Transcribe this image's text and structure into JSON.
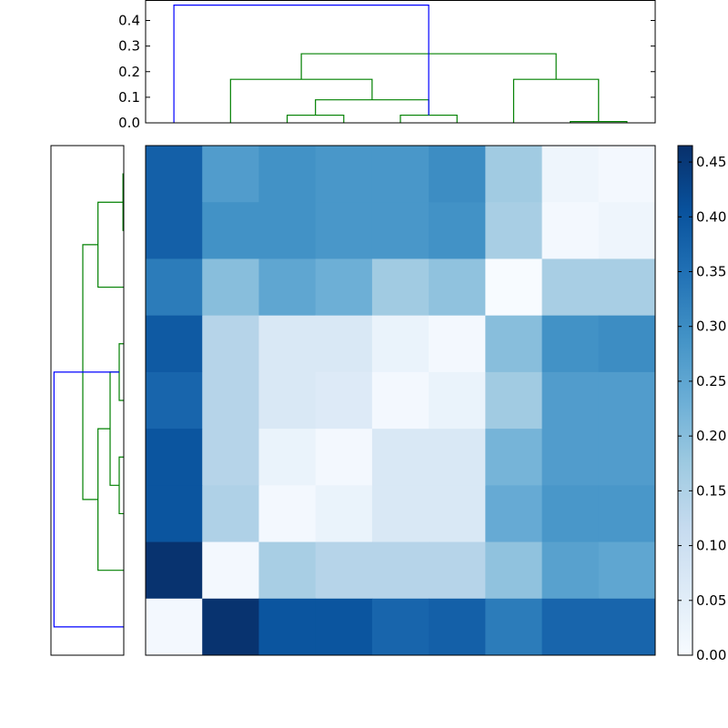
{
  "chart_data": [
    {
      "type": "dendrogram",
      "position": "top",
      "yticks": [
        "0.0",
        "0.1",
        "0.2",
        "0.3",
        "0.4"
      ],
      "ylim": [
        0,
        0.48
      ],
      "leaf_count": 9,
      "links": [
        {
          "left": 2,
          "right": 3,
          "height": 0.03,
          "color": "#008000"
        },
        {
          "left": 4,
          "right": 5,
          "height": 0.03,
          "color": "#008000"
        },
        {
          "left": 2.5,
          "right": 4.5,
          "height": 0.09,
          "color": "#008000"
        },
        {
          "left": 1,
          "right": 3.5,
          "height": 0.17,
          "color": "#008000"
        },
        {
          "left": 7,
          "right": 8,
          "height": 0.005,
          "color": "#008000"
        },
        {
          "left": 6,
          "right": 7.5,
          "height": 0.17,
          "color": "#008000"
        },
        {
          "left": 2.25,
          "right": 6.75,
          "height": 0.27,
          "color": "#008000"
        },
        {
          "left": 0,
          "right": 4.5,
          "height": 0.46,
          "color": "#0000ff"
        }
      ]
    },
    {
      "type": "dendrogram",
      "position": "left",
      "leaf_count": 9,
      "links": [
        {
          "left": 0,
          "right": 1,
          "height": 0.005,
          "color": "#008000"
        },
        {
          "left": 0.5,
          "right": 2,
          "height": 0.17,
          "color": "#008000"
        },
        {
          "left": 5,
          "right": 6,
          "height": 0.03,
          "color": "#008000"
        },
        {
          "left": 3,
          "right": 4,
          "height": 0.03,
          "color": "#008000"
        },
        {
          "left": 3.5,
          "right": 5.5,
          "height": 0.09,
          "color": "#008000"
        },
        {
          "left": 4.5,
          "right": 7,
          "height": 0.17,
          "color": "#008000"
        },
        {
          "left": 1.25,
          "right": 5.75,
          "height": 0.27,
          "color": "#008000"
        },
        {
          "left": 3.5,
          "right": 8,
          "height": 0.46,
          "color": "#0000ff"
        }
      ]
    },
    {
      "type": "heatmap",
      "colormap": [
        "#f7fbff",
        "#deebf7",
        "#c6dbef",
        "#9ecae1",
        "#6baed6",
        "#4292c6",
        "#2171b5",
        "#08519c",
        "#08306b"
      ],
      "vmin": 0,
      "vmax": 0.465,
      "colorbar_ticks": [
        "0.00",
        "0.05",
        "0.10",
        "0.15",
        "0.20",
        "0.25",
        "0.30",
        "0.35",
        "0.40",
        "0.45"
      ],
      "values": [
        [
          0.38,
          0.27,
          0.29,
          0.28,
          0.28,
          0.3,
          0.17,
          0.02,
          0.01
        ],
        [
          0.38,
          0.29,
          0.29,
          0.28,
          0.28,
          0.29,
          0.16,
          0.01,
          0.02
        ],
        [
          0.33,
          0.2,
          0.25,
          0.23,
          0.17,
          0.19,
          0.0,
          0.16,
          0.16
        ],
        [
          0.39,
          0.14,
          0.07,
          0.07,
          0.03,
          0.01,
          0.2,
          0.29,
          0.3
        ],
        [
          0.37,
          0.14,
          0.07,
          0.06,
          0.01,
          0.03,
          0.17,
          0.27,
          0.27
        ],
        [
          0.4,
          0.14,
          0.03,
          0.01,
          0.07,
          0.07,
          0.22,
          0.27,
          0.27
        ],
        [
          0.4,
          0.15,
          0.01,
          0.03,
          0.07,
          0.07,
          0.24,
          0.28,
          0.28
        ],
        [
          0.46,
          0.01,
          0.16,
          0.14,
          0.14,
          0.14,
          0.19,
          0.26,
          0.25
        ],
        [
          0.01,
          0.46,
          0.4,
          0.4,
          0.37,
          0.38,
          0.33,
          0.37,
          0.37
        ]
      ]
    }
  ]
}
